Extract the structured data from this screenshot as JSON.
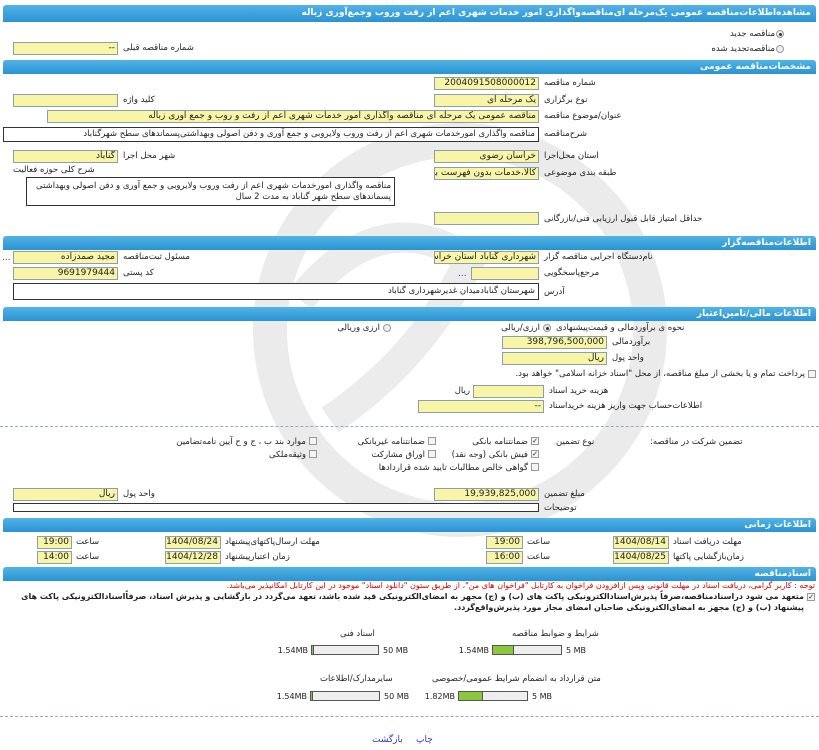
{
  "title": "مشاهده‌اطلاعات‌مناقصه عمومی یک‌مرحله ای‌مناقصه‌واگذاری امور خدمات شهری اعم از رفت وروب وجمع‌آوری زباله",
  "tender_type": {
    "new_label": "مناقصه جدید",
    "renewed_label": "مناقصه‌تجدید شده",
    "selected": "new",
    "prev_number_label": "شماره مناقصه قبلی",
    "prev_number": "--"
  },
  "general": {
    "header": "مشخصات‌مناقصه عمومی",
    "number_label": "شماره مناقصه",
    "number": "2004091508000012",
    "holding_type_label": "نوع برگزاری",
    "holding_type": "یک مرحله ای",
    "keyword_label": "کلید واژه",
    "keyword": "",
    "subject_label": "عنوان/موضوع مناقصه",
    "subject": "مناقصه عمومی یک مرحله ای مناقصه واگذاری امور خدمات شهری اعم از رفت و روب و جمع آوری زباله",
    "description_label": "شرح‌مناقصه",
    "description": "مناقصه واگذاری امورخدمات شهری اعم از رفت وروب ولایروبی و جمع آوری و دفن اصولی وبهداشتی‌پسماندهای سطح شهرگناباد",
    "province_label": "استان محل‌اجرا",
    "province": "خراسان رضوی",
    "city_label": "شهر محل اجرا",
    "city": "گناباد",
    "category_label": "طبقه بندی موضوعی",
    "category": "کالا،خدمات بدون فهرست بها",
    "activity_label": "شرح کلی حوزه فعالیت",
    "activity": "مناقصه واگذاری امورخدمات شهری اعم از رفت وروب ولایروبی و جمع آوری و دفن اصولی وبهداشتی پسماندهای سطح شهر گناباد به مدت 2 سال",
    "min_score_label": "حداقل امتیاز قابل قبول ارزیابی فنی/بازرگانی",
    "min_score": ""
  },
  "organizer": {
    "header": "اطلاعات‌مناقصه‌گزار",
    "org_label": "نام‌دستگاه اجرایی مناقصه گزار",
    "org": "شهرداری گناباد استان خراسان رضوی",
    "registrar_label": "مسئول ثبت‌مناقصه",
    "registrar": "مجید صمدزاده",
    "more": "...",
    "reference_label": "مرجع‌پاسخگویی",
    "reference": "",
    "postal_label": "کد پستی",
    "postal": "9691979444",
    "address_label": "آدرس",
    "address": "شهرستان گنابادمیدان غدیرشهرداری گناباد"
  },
  "finance": {
    "header": "اطلاعات مالی/تامین‌اعتبار",
    "method_label": "نحوه ی برآوردمالی و قیمت‌پیشنهادی",
    "opt1": "ارزی/ریالی",
    "opt2": "ارزی وریالی",
    "selected": "opt1",
    "estimate_label": "برآوردمالی",
    "estimate": "398,796,500,000",
    "currency_label": "واحد پول",
    "currency": "ریال",
    "treasury_label": "پرداخت تمام و یا بخشی از مبلغ مناقصه، از محل \"اسناد خزانه اسلامی\" خواهد بود.",
    "treasury_checked": false,
    "doc_fee_label": "هزینه خرید اسناد",
    "doc_fee": "",
    "doc_fee_unit": "ریال",
    "account_label": "اطلاعات‌حساب جهت واریز هزینه خریداسناد",
    "account": "--"
  },
  "guarantee": {
    "label": "تضمین شرکت در مناقصه:",
    "type_label": "نوع تضمین",
    "options": [
      {
        "label": "ضمانتنامه بانکی",
        "checked": true
      },
      {
        "label": "ضمانتنامه غیربانکی",
        "checked": false
      },
      {
        "label": "موارد بند ب ، ج و ح آیین نامه‌تضامین",
        "checked": false
      },
      {
        "label": "فیش بانکی (وجه نقد)",
        "checked": true
      },
      {
        "label": "اوراق مشارکت",
        "checked": false
      },
      {
        "label": "وثیقه‌ملکی",
        "checked": false
      },
      {
        "label": "گواهی خالص مطالبات تایید شده قراردادها",
        "checked": false
      }
    ],
    "amount_label": "مبلغ تضمین",
    "amount": "19,939,825,000",
    "currency_label": "واحد پول",
    "currency": "ریال",
    "notes_label": "توضیحات",
    "notes": ""
  },
  "timing": {
    "header": "اطلاعات زمانی",
    "doc_deadline_label": "مهلت دریافت اسناد",
    "doc_deadline": "1404/08/14",
    "doc_time": "19:00",
    "submit_label": "مهلت ارسال‌پاکتهای‌پیشنهاد",
    "submit_date": "1404/08/24",
    "submit_time": "19:00",
    "open_label": "زمان‌بازگشایی پاکتها",
    "open_date": "1404/08/25",
    "open_time": "16:00",
    "validity_label": "زمان اعتبارپیشنهاد",
    "validity_date": "1404/12/28",
    "validity_time": "14:00",
    "time_label": "ساعت"
  },
  "documents": {
    "header": "اسنادمناقصه",
    "notice": "توجه : کاربر گرامی، دریافت اسناد در مهلت قانونی وپس ازافزودن فراخوان به کارتابل \"فراخوان های من\"، از طریق ستون \"دانلود اسناد\" موجود در این کارتابل امکانپذیر می‌باشد.",
    "commitment_line1": "متعهد می شود دراسنادمناقصه،صرفاً پذیرش‌اسنادالکترونیکی پاکت های (ب) و (ج) مجهز به امضای‌الکترونیکی قید شده باشد، تعهد می‌گردد در بازگشایی و پذیرش اسناد، صرفاً‌اسنادالکترونیکی پاکت های",
    "commitment_line2": "پیشنهاد (ب) و (ج) مجهز به امضای‌الکترونیکی صاحبان امضای مجاز مورد پذیرش‌واقع‌گردد.",
    "commitment_checked": true,
    "files": [
      {
        "label": "شرایط و ضوابط مناقصه",
        "size": "1.54MB",
        "max": "5 MB",
        "fraction": 0.31
      },
      {
        "label": "اسناد فنی",
        "size": "1.54MB",
        "max": "50 MB",
        "fraction": 0.03
      },
      {
        "label": "متن قرارداد به انضمام شرایط عمومی/خصوصی",
        "size": "1.82MB",
        "max": "5 MB",
        "fraction": 0.36
      },
      {
        "label": "سایرمدارک/اطلاعات",
        "size": "1.54MB",
        "max": "50 MB",
        "fraction": 0.03
      }
    ]
  },
  "footer": {
    "print": "چاپ",
    "back": "بازگشت"
  }
}
